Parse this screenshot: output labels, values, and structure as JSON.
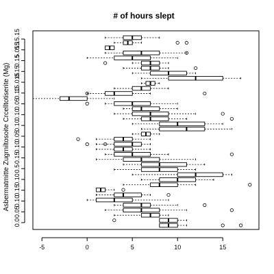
{
  "chart_data": {
    "type": "boxplot",
    "orientation": "horizontal",
    "title": "# of hours slept",
    "ylabel": "Asbermatmitte Zugrniltosoite Crcelltotiserite (Mg)",
    "xlabel": "",
    "xlim": [
      -6,
      19
    ],
    "x_ticks": [
      -5,
      0,
      5,
      10,
      15
    ],
    "y_tick_labels": [
      "0.0",
      "0.05",
      "0.10",
      "0.15",
      "0.10",
      "0.5",
      "0.15",
      "0.10",
      "0.05",
      "0.10",
      "0.10",
      "0.05",
      "0.10",
      "15.015",
      "0.15",
      "0.15",
      "5.015",
      "5.15.15"
    ],
    "grid": false,
    "legend": "none",
    "colors": {
      "box": "#000000",
      "whisker": "#000000",
      "outlier": "#000000"
    },
    "series": [
      {
        "whisker_low": 8,
        "q1": 8,
        "median": 9,
        "q3": 10,
        "whisker_high": 11,
        "outliers": [
          15,
          17
        ]
      },
      {
        "whisker_low": 8,
        "q1": 8,
        "median": 9,
        "q3": 10,
        "whisker_high": 11,
        "outliers": [
          3
        ]
      },
      {
        "whisker_low": 3,
        "q1": 6,
        "median": 7,
        "q3": 8,
        "whisker_high": 9,
        "outliers": []
      },
      {
        "whisker_low": 2,
        "q1": 4,
        "median": 6,
        "q3": 8,
        "whisker_high": 11,
        "outliers": [
          16
        ]
      },
      {
        "whisker_low": 3,
        "q1": 4,
        "median": 6,
        "q3": 7,
        "whisker_high": 10,
        "outliers": [
          13
        ]
      },
      {
        "whisker_low": 0,
        "q1": 1,
        "median": 3,
        "q3": 5,
        "whisker_high": 9,
        "outliers": []
      },
      {
        "whisker_low": 1,
        "q1": 3,
        "median": 4,
        "q3": 6,
        "whisker_high": 7,
        "outliers": [
          9
        ]
      },
      {
        "whisker_low": 1,
        "q1": 1,
        "median": 1.5,
        "q3": 2,
        "whisker_high": 3,
        "outliers": [
          4
        ]
      },
      {
        "whisker_low": 4,
        "q1": 7,
        "median": 8,
        "q3": 10,
        "whisker_high": 12,
        "outliers": [
          18
        ]
      },
      {
        "whisker_low": 6,
        "q1": 8,
        "median": 10,
        "q3": 12,
        "whisker_high": 14,
        "outliers": []
      },
      {
        "whisker_low": 5,
        "q1": 10,
        "median": 12,
        "q3": 15,
        "whisker_high": 16,
        "outliers": []
      },
      {
        "whisker_low": 3,
        "q1": 6,
        "median": 8,
        "q3": 10,
        "whisker_high": 12,
        "outliers": []
      },
      {
        "whisker_low": 4,
        "q1": 6,
        "median": 8,
        "q3": 11,
        "whisker_high": 13,
        "outliers": []
      },
      {
        "whisker_low": 1,
        "q1": 4,
        "median": 6,
        "q3": 8,
        "whisker_high": 12,
        "outliers": []
      },
      {
        "whisker_low": 2,
        "q1": 3,
        "median": 5,
        "q3": 7,
        "whisker_high": 9,
        "outliers": [
          16
        ]
      },
      {
        "whisker_low": 1,
        "q1": 3,
        "median": 4,
        "q3": 5,
        "whisker_high": 7,
        "outliers": []
      },
      {
        "whisker_low": 1,
        "q1": 3,
        "median": 5,
        "q3": 6,
        "whisker_high": 7,
        "outliers": [
          0,
          2
        ]
      },
      {
        "whisker_low": 1,
        "q1": 3,
        "median": 4,
        "q3": 5,
        "whisker_high": 7,
        "outliers": [
          -1
        ]
      },
      {
        "whisker_low": 5,
        "q1": 6,
        "median": 6.5,
        "q3": 7,
        "whisker_high": 8,
        "outliers": []
      },
      {
        "whisker_low": 6,
        "q1": 8,
        "median": 11,
        "q3": 13,
        "whisker_high": 16,
        "outliers": []
      },
      {
        "whisker_low": 5,
        "q1": 8,
        "median": 10,
        "q3": 13,
        "whisker_high": 15,
        "outliers": []
      },
      {
        "whisker_low": 4,
        "q1": 6,
        "median": 7,
        "q3": 9,
        "whisker_high": 11,
        "outliers": [
          16
        ]
      },
      {
        "whisker_low": 3,
        "q1": 5,
        "median": 7,
        "q3": 9,
        "whisker_high": 12,
        "outliers": [
          15
        ]
      },
      {
        "whisker_low": 4,
        "q1": 5,
        "median": 6,
        "q3": 8,
        "whisker_high": 10,
        "outliers": []
      },
      {
        "whisker_low": 2,
        "q1": 3,
        "median": 5,
        "q3": 7,
        "whisker_high": 10,
        "outliers": [
          0
        ]
      },
      {
        "whisker_low": -6,
        "q1": -3,
        "median": -2,
        "q3": 0,
        "whisker_high": 3,
        "outliers": []
      },
      {
        "whisker_low": 0,
        "q1": 2,
        "median": 3,
        "q3": 5,
        "whisker_high": 7,
        "outliers": [
          0,
          13
        ]
      },
      {
        "whisker_low": 3,
        "q1": 5,
        "median": 6,
        "q3": 7,
        "whisker_high": 9,
        "outliers": []
      },
      {
        "whisker_low": 6,
        "q1": 6.5,
        "median": 7,
        "q3": 7.5,
        "whisker_high": 8,
        "outliers": []
      },
      {
        "whisker_low": 6,
        "q1": 9,
        "median": 12,
        "q3": 15,
        "whisker_high": 17,
        "outliers": []
      },
      {
        "whisker_low": 5,
        "q1": 7,
        "median": 9,
        "q3": 11,
        "whisker_high": 12,
        "outliers": []
      },
      {
        "whisker_low": 4,
        "q1": 6,
        "median": 7,
        "q3": 8,
        "whisker_high": 9,
        "outliers": [
          12
        ]
      },
      {
        "whisker_low": 5,
        "q1": 6,
        "median": 7,
        "q3": 8,
        "whisker_high": 9,
        "outliers": [
          2
        ]
      },
      {
        "whisker_low": 0,
        "q1": 3,
        "median": 5,
        "q3": 7,
        "whisker_high": 10,
        "outliers": []
      },
      {
        "whisker_low": 2,
        "q1": 4,
        "median": 6,
        "q3": 8,
        "whisker_high": 11,
        "outliers": [
          11
        ]
      },
      {
        "whisker_low": 2,
        "q1": 2,
        "median": 2.5,
        "q3": 3,
        "whisker_high": 3,
        "outliers": []
      },
      {
        "whisker_low": 3,
        "q1": 4,
        "median": 4.5,
        "q3": 5,
        "whisker_high": 6,
        "outliers": [
          11,
          10
        ]
      },
      {
        "whisker_low": 2,
        "q1": 4,
        "median": 5,
        "q3": 6,
        "whisker_high": 8,
        "outliers": []
      }
    ]
  }
}
